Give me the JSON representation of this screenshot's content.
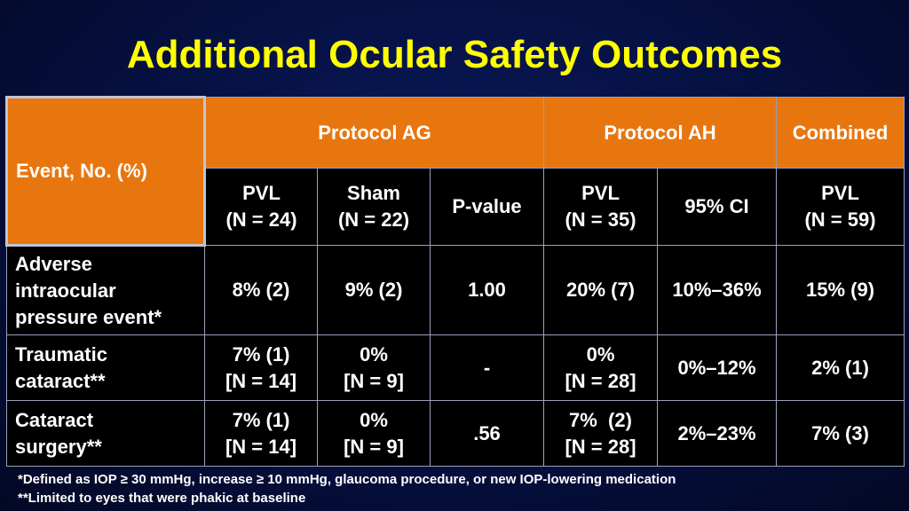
{
  "title": "Additional Ocular Safety Outcomes",
  "colors": {
    "title": "#ffff00",
    "header_bg": "#e8760f",
    "cell_bg": "#000000",
    "background": "#061040"
  },
  "table": {
    "corner_label": "Event, No. (%)",
    "groups": [
      "Protocol AG",
      "Protocol AH",
      "Combined"
    ],
    "columns": [
      {
        "line1": "PVL",
        "line2": "(N = 24)"
      },
      {
        "line1": "Sham",
        "line2": "(N = 22)"
      },
      {
        "line1": "P-value",
        "line2": ""
      },
      {
        "line1": "PVL",
        "line2": "(N = 35)"
      },
      {
        "line1": "95% CI",
        "line2": ""
      },
      {
        "line1": "PVL",
        "line2": "(N = 59)"
      }
    ],
    "rows": [
      {
        "label": [
          "Adverse",
          "intraocular",
          "pressure event*"
        ],
        "cells": [
          [
            "8% (2)"
          ],
          [
            "9% (2)"
          ],
          [
            "1.00"
          ],
          [
            "20% (7)"
          ],
          [
            "10%–36%"
          ],
          [
            "15% (9)"
          ]
        ]
      },
      {
        "label": [
          "Traumatic",
          "cataract**"
        ],
        "cells": [
          [
            "7% (1)",
            "[N = 14]"
          ],
          [
            "0%",
            "[N = 9]"
          ],
          [
            "-"
          ],
          [
            "0%",
            "[N = 28]"
          ],
          [
            "0%–12%"
          ],
          [
            "2% (1)"
          ]
        ]
      },
      {
        "label": [
          "Cataract",
          "surgery**"
        ],
        "cells": [
          [
            "7% (1)",
            "[N = 14]"
          ],
          [
            "0%",
            "[N = 9]"
          ],
          [
            ".56"
          ],
          [
            "7%  (2)",
            "[N = 28]"
          ],
          [
            "2%–23%"
          ],
          [
            "7% (3)"
          ]
        ]
      }
    ]
  },
  "footnotes": [
    "*Defined as IOP ≥ 30 mmHg, increase ≥ 10 mmHg, glaucoma procedure, or new IOP-lowering medication",
    "**Limited to eyes that were phakic at baseline"
  ]
}
